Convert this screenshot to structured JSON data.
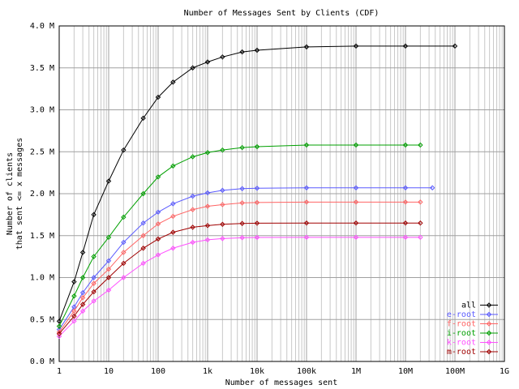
{
  "chart_data": {
    "type": "line",
    "title": "Number of Messages Sent by Clients (CDF)",
    "xlabel": "Number of messages sent",
    "ylabel": [
      "Number of clients",
      "that sent <= x messages"
    ],
    "xscale": "log",
    "grid": true,
    "legend": "lower right",
    "xlim": [
      1,
      1000000000
    ],
    "xticks": [
      1,
      10,
      100,
      {
        "value": 1000,
        "label": "1k"
      },
      {
        "value": 10000,
        "label": "10k"
      },
      {
        "value": 100000,
        "label": "100k"
      },
      {
        "value": 1000000,
        "label": "1M"
      },
      {
        "value": 10000000,
        "label": "10M"
      },
      {
        "value": 100000000,
        "label": "100M"
      },
      {
        "value": 1000000000,
        "label": "1G"
      }
    ],
    "ylim": [
      0,
      4000000
    ],
    "yticks": [
      {
        "value": 0,
        "label": "0.0 M"
      },
      {
        "value": 500000,
        "label": "0.5 M"
      },
      {
        "value": 1000000,
        "label": "1.0 M"
      },
      {
        "value": 1500000,
        "label": "1.5 M"
      },
      {
        "value": 2000000,
        "label": "2.0 M"
      },
      {
        "value": 2500000,
        "label": "2.5 M"
      },
      {
        "value": 3000000,
        "label": "3.0 M"
      },
      {
        "value": 3500000,
        "label": "3.5 M"
      },
      {
        "value": 4000000,
        "label": "4.0 M"
      }
    ],
    "series": [
      {
        "name": "all",
        "color": "#000000",
        "x": [
          1,
          2,
          3,
          5,
          10,
          20,
          50,
          100,
          200,
          500,
          1000,
          2000,
          5000,
          10000,
          100000,
          1000000,
          10000000,
          100000000
        ],
        "values": [
          480000,
          950000,
          1300000,
          1750000,
          2150000,
          2520000,
          2900000,
          3150000,
          3330000,
          3500000,
          3570000,
          3630000,
          3690000,
          3710000,
          3750000,
          3760000,
          3760000,
          3760000
        ]
      },
      {
        "name": "e-root",
        "color": "#5a5aff",
        "x": [
          1,
          2,
          3,
          5,
          10,
          20,
          50,
          100,
          200,
          500,
          1000,
          2000,
          5000,
          10000,
          100000,
          1000000,
          10000000,
          35000000
        ],
        "values": [
          380000,
          650000,
          820000,
          1000000,
          1200000,
          1420000,
          1650000,
          1780000,
          1880000,
          1970000,
          2010000,
          2040000,
          2060000,
          2065000,
          2070000,
          2070000,
          2070000,
          2070000
        ]
      },
      {
        "name": "f-root",
        "color": "#ff6464",
        "x": [
          1,
          2,
          3,
          5,
          10,
          20,
          50,
          100,
          200,
          500,
          1000,
          2000,
          5000,
          10000,
          100000,
          1000000,
          10000000,
          20000000
        ],
        "values": [
          350000,
          600000,
          760000,
          930000,
          1100000,
          1300000,
          1500000,
          1640000,
          1730000,
          1810000,
          1850000,
          1870000,
          1890000,
          1895000,
          1900000,
          1900000,
          1900000,
          1900000
        ]
      },
      {
        "name": "i-root",
        "color": "#00a000",
        "x": [
          1,
          2,
          3,
          5,
          10,
          20,
          50,
          100,
          200,
          500,
          1000,
          2000,
          5000,
          10000,
          100000,
          1000000,
          10000000,
          20000000
        ],
        "values": [
          420000,
          780000,
          1000000,
          1250000,
          1480000,
          1720000,
          2000000,
          2200000,
          2330000,
          2440000,
          2490000,
          2520000,
          2550000,
          2560000,
          2580000,
          2580000,
          2580000,
          2580000
        ]
      },
      {
        "name": "k-root",
        "color": "#ff50ff",
        "x": [
          1,
          2,
          3,
          5,
          10,
          20,
          50,
          100,
          200,
          500,
          1000,
          2000,
          5000,
          10000,
          100000,
          1000000,
          10000000,
          20000000
        ],
        "values": [
          300000,
          480000,
          600000,
          720000,
          850000,
          1000000,
          1170000,
          1270000,
          1350000,
          1420000,
          1450000,
          1465000,
          1475000,
          1478000,
          1480000,
          1480000,
          1480000,
          1480000
        ]
      },
      {
        "name": "m-root",
        "color": "#a00000",
        "x": [
          1,
          2,
          3,
          5,
          10,
          20,
          50,
          100,
          200,
          500,
          1000,
          2000,
          5000,
          10000,
          100000,
          1000000,
          10000000,
          20000000
        ],
        "values": [
          330000,
          540000,
          680000,
          830000,
          1000000,
          1170000,
          1350000,
          1460000,
          1540000,
          1600000,
          1620000,
          1635000,
          1645000,
          1648000,
          1650000,
          1650000,
          1650000,
          1650000
        ]
      }
    ]
  }
}
